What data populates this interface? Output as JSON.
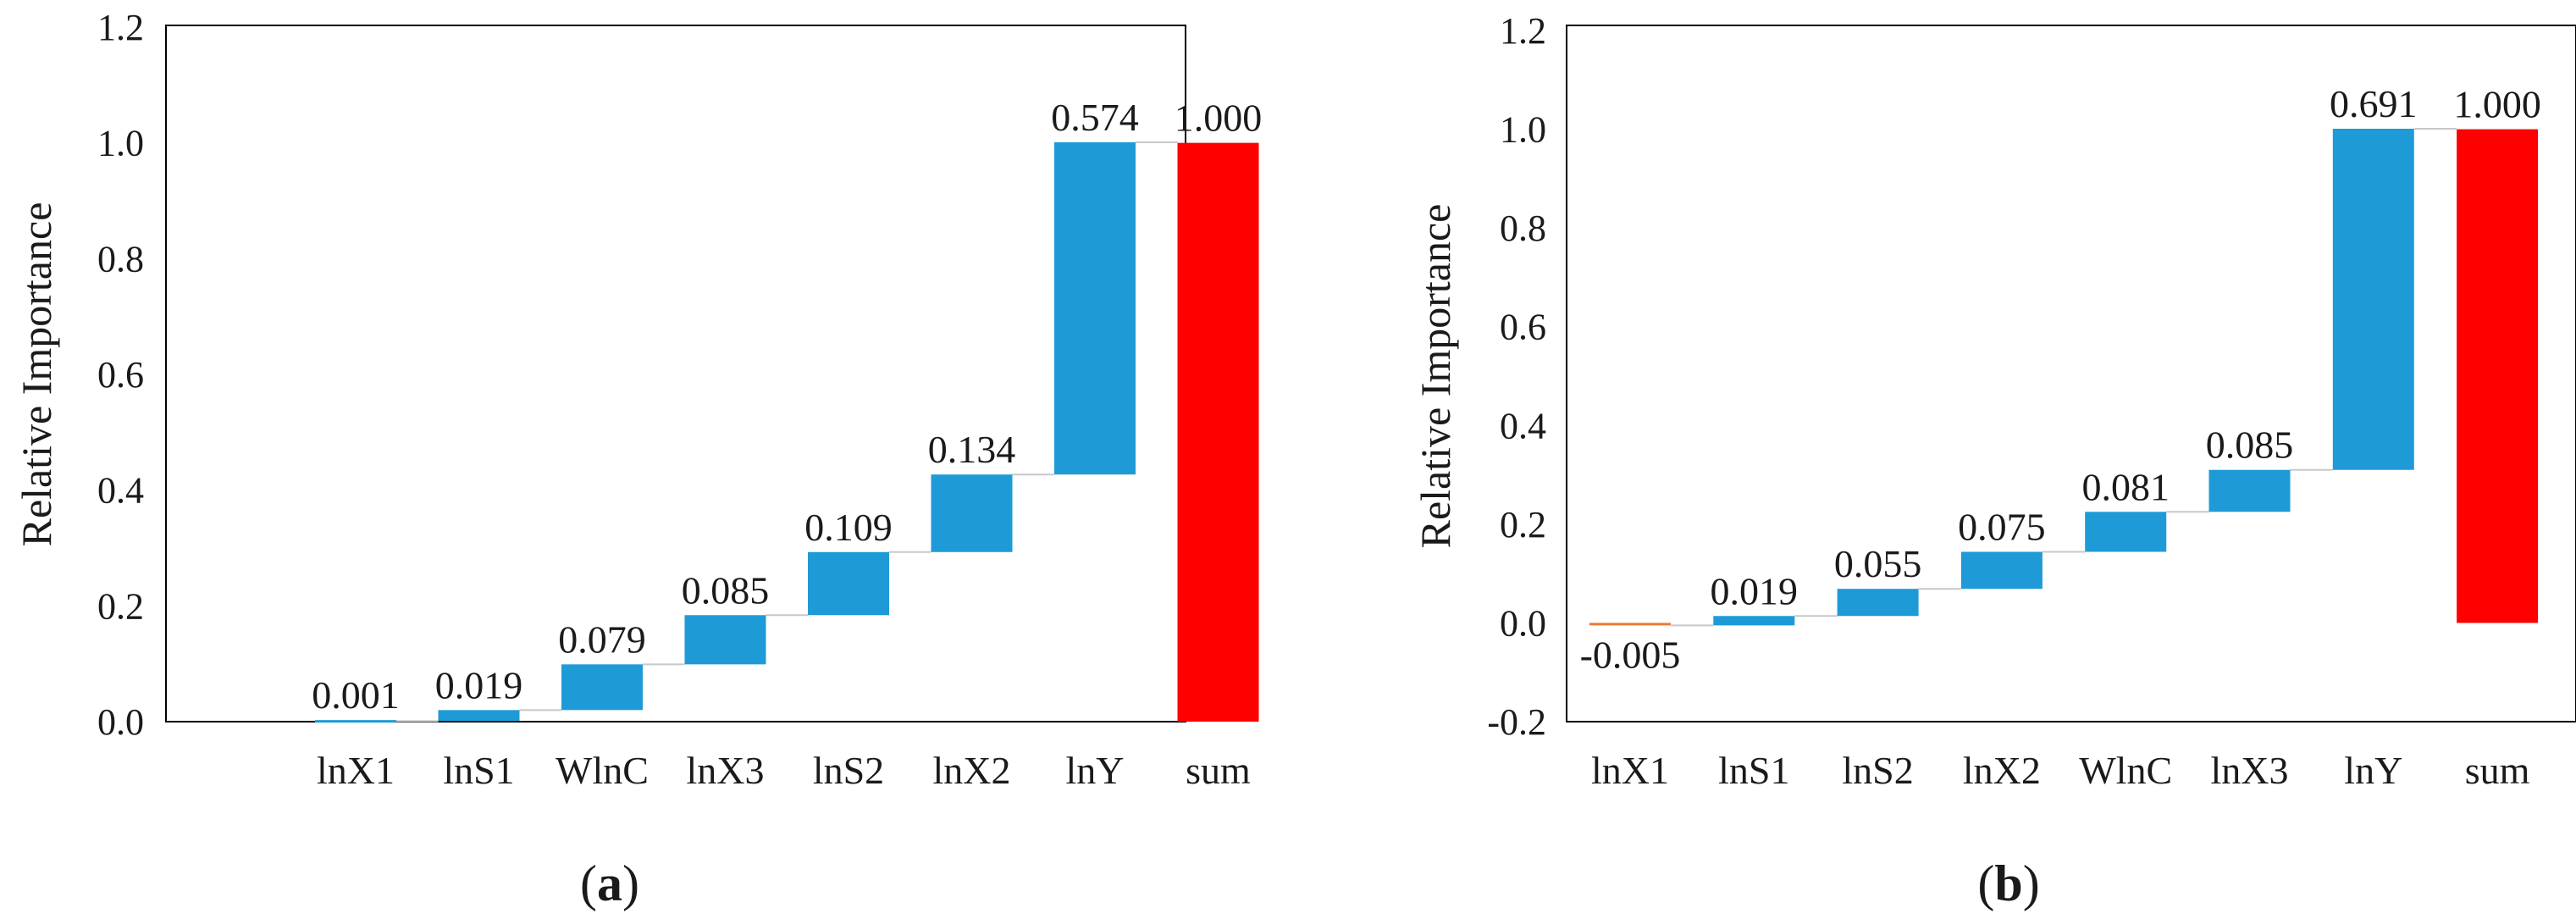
{
  "colors": {
    "positive": "#1e9bd7",
    "negative": "#e87b35",
    "sum": "#ff0000",
    "connector": "#c8c8c8",
    "frame": "#000000"
  },
  "chart_data": [
    {
      "type": "bar",
      "subtype": "waterfall",
      "panel_label": "a",
      "ylabel": "Relative Importance",
      "ylim": [
        0,
        1.2
      ],
      "yticks": [
        "0.0",
        "0.2",
        "0.4",
        "0.6",
        "0.8",
        "1.0",
        "1.2"
      ],
      "categories": [
        "lnX1",
        "lnS1",
        "WlnC",
        "lnX3",
        "lnS2",
        "lnX2",
        "lnY",
        "sum"
      ],
      "values": [
        0.001,
        0.019,
        0.079,
        0.085,
        0.109,
        0.134,
        0.574,
        1.0
      ],
      "labels": [
        "0.001",
        "0.019",
        "0.079",
        "0.085",
        "0.109",
        "0.134",
        "0.574",
        "1.000"
      ],
      "grid": false
    },
    {
      "type": "bar",
      "subtype": "waterfall",
      "panel_label": "b",
      "ylabel": "Relative Importance",
      "ylim": [
        -0.2,
        1.2
      ],
      "yticks": [
        "-0.2",
        "0.0",
        "0.2",
        "0.4",
        "0.6",
        "0.8",
        "1.0",
        "1.2"
      ],
      "categories": [
        "lnX1",
        "lnS1",
        "lnS2",
        "lnX2",
        "WlnC",
        "lnX3",
        "lnY",
        "sum"
      ],
      "values": [
        -0.005,
        0.019,
        0.055,
        0.075,
        0.081,
        0.085,
        0.691,
        1.0
      ],
      "labels": [
        "-0.005",
        "0.019",
        "0.055",
        "0.075",
        "0.081",
        "0.085",
        "0.691",
        "1.000"
      ],
      "grid": false
    }
  ]
}
